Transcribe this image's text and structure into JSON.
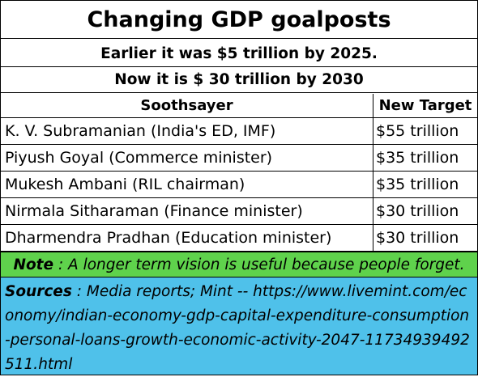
{
  "title": "Changing GDP goalposts",
  "subtitle_1": "Earlier it was $5 trillion by 2025.",
  "subtitle_2": "Now it is $ 30 trillion by 2030",
  "table": {
    "headers": [
      "Soothsayer",
      "New Target"
    ],
    "rows": [
      {
        "soothsayer": "K. V. Subramanian (India's ED, IMF)",
        "target": "$55 trillion"
      },
      {
        "soothsayer": "Piyush Goyal (Commerce minister)",
        "target": "$35 trillion"
      },
      {
        "soothsayer": "Mukesh Ambani (RIL chairman)",
        "target": "$35 trillion"
      },
      {
        "soothsayer": "Nirmala Sitharaman (Finance minister)",
        "target": "$30 trillion"
      },
      {
        "soothsayer": "Dharmendra Pradhan (Education minister)",
        "target": "$30 trillion"
      }
    ]
  },
  "note": {
    "label": "Note",
    "text": " : A longer term vision is useful because people forget."
  },
  "sources": {
    "label": "Sources",
    "text": " : Media reports; Mint -- https://www.livemint.com/economy/indian-economy-gdp-capital-expenditure-consumption-personal-loans-growth-economic-activity-2047-11734939492511.html"
  },
  "colors": {
    "note_background": "#5fd24c",
    "sources_background": "#4fc1ea"
  }
}
